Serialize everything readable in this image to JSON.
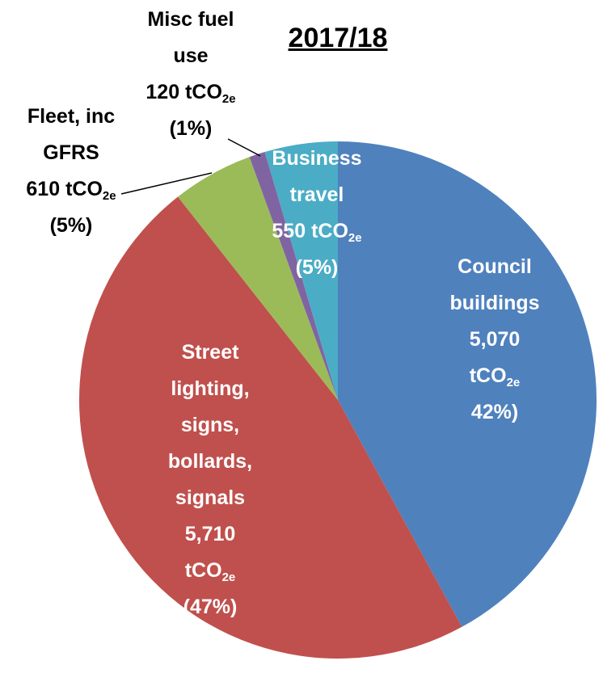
{
  "chart_data": {
    "type": "pie",
    "title": "2017/18",
    "categories": [
      "Council buildings",
      "Street lighting, signs, bollards, signals",
      "Fleet, inc GFRS",
      "Misc fuel use",
      "Business travel"
    ],
    "values": [
      5070,
      5710,
      610,
      120,
      550
    ],
    "value_labels": [
      "5,070",
      "5,710",
      "610",
      "120",
      "550"
    ],
    "percent_labels": [
      "42%)",
      "(47%)",
      "(5%)",
      "(1%)",
      "(5%)"
    ],
    "unit": "tCO",
    "unit_subscript": "2e",
    "colors": [
      "#4f81bd",
      "#c0504d",
      "#9bbb59",
      "#8064a2",
      "#4bacc6"
    ]
  }
}
